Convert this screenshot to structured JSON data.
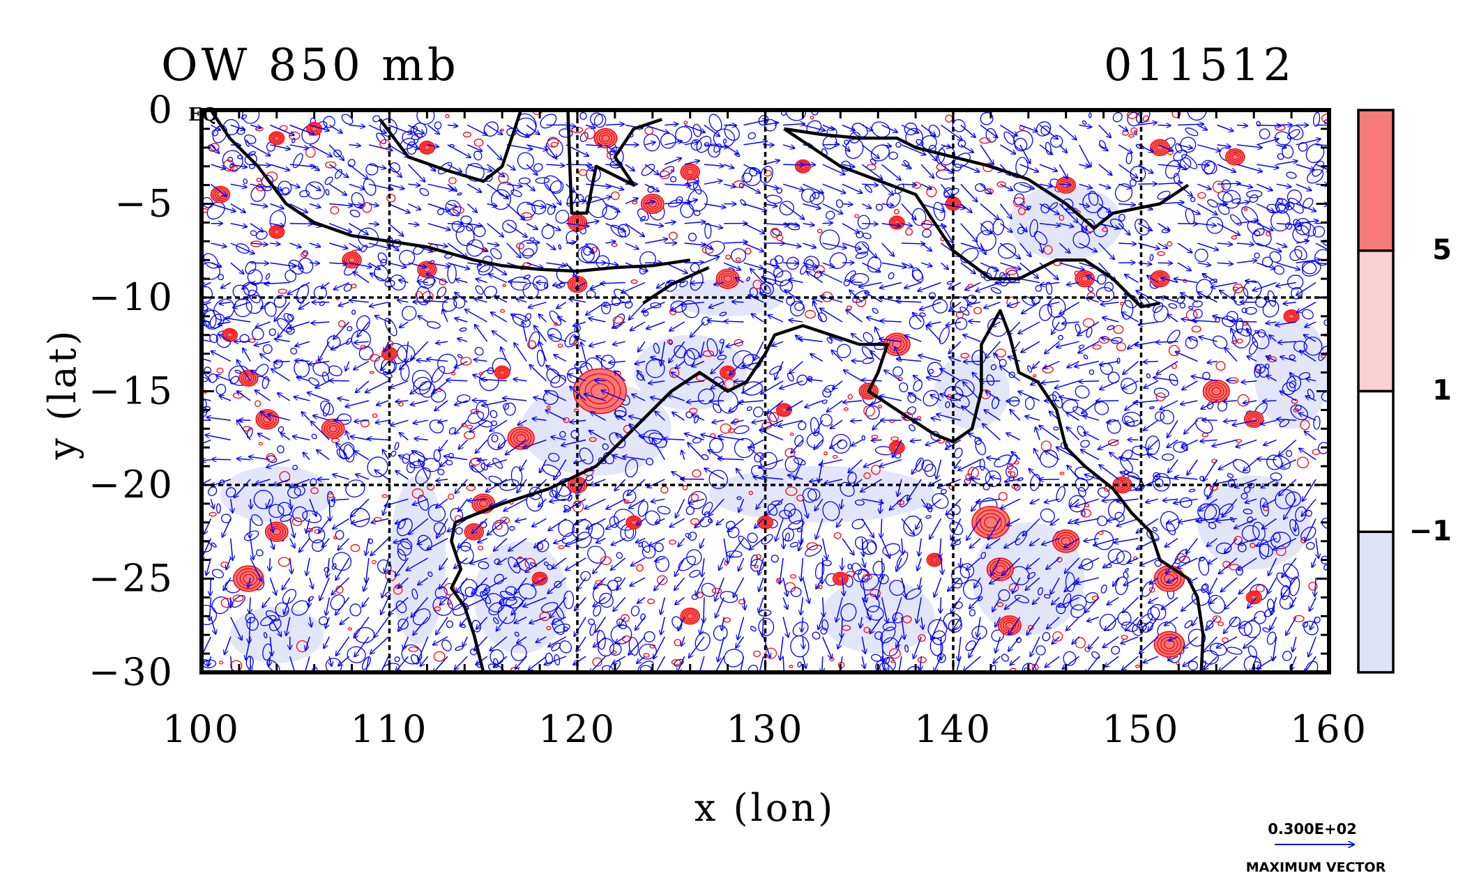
{
  "chart_data": {
    "type": "heatmap",
    "title": "OW 850 mb",
    "date_label": "011512",
    "xlabel": "x (lon)",
    "ylabel": "y (lat)",
    "xlim": [
      100,
      160
    ],
    "ylim": [
      -30,
      0
    ],
    "xticks": [
      100,
      110,
      120,
      130,
      140,
      150,
      160
    ],
    "yticks": [
      0,
      -5,
      -10,
      -15,
      -20,
      -25,
      -30
    ],
    "ytick_labels": [
      "0",
      "−5",
      "−10",
      "−15",
      "−20",
      "−25",
      "−30"
    ],
    "corner_label": "EQ",
    "grid": true,
    "grid_x": [
      110,
      120,
      130,
      140,
      150
    ],
    "grid_y": [
      -10,
      -20
    ],
    "colorbar": {
      "levels": [
        -1,
        1,
        5
      ],
      "level_labels": [
        "−1",
        "1",
        "5"
      ],
      "colors": [
        "#dde2f7",
        "#ffffff",
        "#fbd0d0",
        "#f57a78"
      ]
    },
    "vector_key": {
      "magnitude_label": "0.300E+02",
      "caption": "MAXIMUM VECTOR"
    },
    "colors": {
      "positive_contour": "#ff0000",
      "negative_contour": "#0000ff",
      "vector": "#0000ff",
      "coastline": "#000000"
    },
    "features": [
      {
        "name": "Sumatra / Java coast",
        "lonlat": [
          [
            100.5,
            0
          ],
          [
            101.5,
            -1.5
          ],
          [
            103,
            -3
          ],
          [
            104.5,
            -5
          ],
          [
            106,
            -6
          ],
          [
            108,
            -6.7
          ],
          [
            110,
            -7
          ],
          [
            112,
            -7.3
          ],
          [
            114.5,
            -8
          ],
          [
            116,
            -8.3
          ],
          [
            118,
            -8.5
          ],
          [
            120,
            -8.6
          ],
          [
            122,
            -8.4
          ],
          [
            124,
            -8.3
          ],
          [
            126,
            -8
          ]
        ]
      },
      {
        "name": "Borneo south coast",
        "lonlat": [
          [
            109.5,
            -0.5
          ],
          [
            111,
            -2.5
          ],
          [
            113,
            -3.2
          ],
          [
            115,
            -3.8
          ],
          [
            116,
            -3
          ],
          [
            116.5,
            -1.5
          ],
          [
            117,
            0
          ]
        ]
      },
      {
        "name": "Sulawesi",
        "lonlat": [
          [
            119.5,
            0
          ],
          [
            119.6,
            -3
          ],
          [
            119.7,
            -5.5
          ],
          [
            120.5,
            -5.5
          ],
          [
            121,
            -3
          ],
          [
            123,
            -4
          ],
          [
            122,
            -2.5
          ],
          [
            123,
            -1
          ],
          [
            124.5,
            -0.5
          ]
        ]
      },
      {
        "name": "New Guinea south coast",
        "lonlat": [
          [
            131,
            -1
          ],
          [
            134,
            -3
          ],
          [
            138,
            -4.5
          ],
          [
            140,
            -7.5
          ],
          [
            142,
            -9
          ],
          [
            143.5,
            -9
          ],
          [
            145.5,
            -8
          ],
          [
            147,
            -8
          ],
          [
            148.5,
            -9
          ],
          [
            150,
            -10.5
          ],
          [
            151,
            -10.3
          ]
        ]
      },
      {
        "name": "New Guinea north coast",
        "lonlat": [
          [
            131,
            -1
          ],
          [
            133,
            -1.3
          ],
          [
            135,
            -1.5
          ],
          [
            137,
            -1.5
          ],
          [
            138,
            -2
          ],
          [
            140,
            -2.5
          ],
          [
            142,
            -3
          ],
          [
            144,
            -3.7
          ],
          [
            146,
            -5
          ],
          [
            147.5,
            -6.3
          ],
          [
            148.5,
            -5.5
          ],
          [
            151,
            -5
          ],
          [
            152.5,
            -4
          ]
        ]
      },
      {
        "name": "Timor",
        "lonlat": [
          [
            123.5,
            -10.3
          ],
          [
            125,
            -9.3
          ],
          [
            127,
            -8.4
          ]
        ]
      },
      {
        "name": "Australia coastline",
        "lonlat": [
          [
            113.5,
            -22
          ],
          [
            114,
            -21.8
          ],
          [
            116,
            -21
          ],
          [
            118.5,
            -20.2
          ],
          [
            121,
            -19
          ],
          [
            122.5,
            -17.5
          ],
          [
            123.5,
            -16.5
          ],
          [
            125,
            -15
          ],
          [
            126.5,
            -14
          ],
          [
            128,
            -15
          ],
          [
            129,
            -14.5
          ],
          [
            130,
            -13
          ],
          [
            130.5,
            -12
          ],
          [
            132,
            -11.5
          ],
          [
            133.5,
            -12
          ],
          [
            135,
            -12.5
          ],
          [
            136.5,
            -12.5
          ],
          [
            136,
            -14
          ],
          [
            135.5,
            -15
          ],
          [
            137,
            -16
          ],
          [
            139,
            -17.3
          ],
          [
            140,
            -17.7
          ],
          [
            141,
            -17
          ],
          [
            141.5,
            -15
          ],
          [
            141.5,
            -12.5
          ],
          [
            142.5,
            -10.7
          ],
          [
            143,
            -12
          ],
          [
            143.5,
            -14
          ],
          [
            144.5,
            -14.5
          ],
          [
            145.5,
            -16
          ],
          [
            146,
            -18
          ],
          [
            147,
            -19
          ],
          [
            148.5,
            -20.2
          ],
          [
            149.5,
            -21.5
          ],
          [
            150.5,
            -22.5
          ],
          [
            151,
            -24
          ],
          [
            152.5,
            -25
          ],
          [
            153,
            -26
          ],
          [
            153.3,
            -28
          ],
          [
            153.2,
            -30
          ]
        ]
      },
      {
        "name": "Australia west coast",
        "lonlat": [
          [
            113.5,
            -22
          ],
          [
            113.3,
            -23
          ],
          [
            113.8,
            -24.5
          ],
          [
            113.3,
            -25.5
          ],
          [
            114,
            -26.5
          ],
          [
            114.5,
            -28
          ],
          [
            115,
            -30
          ]
        ]
      }
    ],
    "positive_cells": [
      {
        "lon": 121.2,
        "lat": -15.0,
        "r": 1.4
      },
      {
        "lon": 102.5,
        "lat": -25.0,
        "r": 0.8
      },
      {
        "lon": 103.5,
        "lat": -16.5,
        "r": 0.6
      },
      {
        "lon": 107,
        "lat": -17,
        "r": 0.6
      },
      {
        "lon": 102.5,
        "lat": -14.3,
        "r": 0.5
      },
      {
        "lon": 101.5,
        "lat": -12,
        "r": 0.4
      },
      {
        "lon": 104,
        "lat": -22.5,
        "r": 0.6
      },
      {
        "lon": 142,
        "lat": -22,
        "r": 1.0
      },
      {
        "lon": 142.5,
        "lat": -24.5,
        "r": 0.7
      },
      {
        "lon": 146,
        "lat": -23,
        "r": 0.7
      },
      {
        "lon": 151.5,
        "lat": -25,
        "r": 0.8
      },
      {
        "lon": 151.5,
        "lat": -28.5,
        "r": 0.8
      },
      {
        "lon": 154,
        "lat": -15,
        "r": 0.7
      },
      {
        "lon": 156,
        "lat": -16.5,
        "r": 0.5
      },
      {
        "lon": 137,
        "lat": -12.5,
        "r": 0.7
      },
      {
        "lon": 128,
        "lat": -9,
        "r": 0.6
      },
      {
        "lon": 120,
        "lat": -9.3,
        "r": 0.5
      },
      {
        "lon": 124,
        "lat": -5,
        "r": 0.6
      },
      {
        "lon": 120,
        "lat": -6,
        "r": 0.5
      },
      {
        "lon": 126,
        "lat": -3.3,
        "r": 0.5
      },
      {
        "lon": 121.5,
        "lat": -1.5,
        "r": 0.6
      },
      {
        "lon": 117,
        "lat": -17.5,
        "r": 0.7
      },
      {
        "lon": 115,
        "lat": -21,
        "r": 0.6
      },
      {
        "lon": 143,
        "lat": -27.5,
        "r": 0.6
      },
      {
        "lon": 147,
        "lat": -9,
        "r": 0.5
      },
      {
        "lon": 151,
        "lat": -9,
        "r": 0.5
      },
      {
        "lon": 101,
        "lat": -4.5,
        "r": 0.5
      },
      {
        "lon": 104,
        "lat": -6.5,
        "r": 0.4
      },
      {
        "lon": 108,
        "lat": -8,
        "r": 0.5
      },
      {
        "lon": 112,
        "lat": -8.5,
        "r": 0.5
      },
      {
        "lon": 114.5,
        "lat": -22.5,
        "r": 0.5
      },
      {
        "lon": 118,
        "lat": -25,
        "r": 0.4
      },
      {
        "lon": 126,
        "lat": -27,
        "r": 0.5
      },
      {
        "lon": 134,
        "lat": -25,
        "r": 0.4
      },
      {
        "lon": 139,
        "lat": -24,
        "r": 0.4
      },
      {
        "lon": 149,
        "lat": -20,
        "r": 0.5
      },
      {
        "lon": 156,
        "lat": -26,
        "r": 0.4
      },
      {
        "lon": 131,
        "lat": -16,
        "r": 0.4
      },
      {
        "lon": 135.5,
        "lat": -15,
        "r": 0.5
      },
      {
        "lon": 128,
        "lat": -14,
        "r": 0.4
      },
      {
        "lon": 146,
        "lat": -4,
        "r": 0.5
      },
      {
        "lon": 140,
        "lat": -5,
        "r": 0.4
      },
      {
        "lon": 155,
        "lat": -2.5,
        "r": 0.5
      },
      {
        "lon": 151,
        "lat": -2,
        "r": 0.5
      },
      {
        "lon": 132,
        "lat": -3,
        "r": 0.4
      },
      {
        "lon": 137,
        "lat": -6,
        "r": 0.4
      },
      {
        "lon": 158,
        "lat": -11,
        "r": 0.4
      },
      {
        "lon": 112,
        "lat": -2,
        "r": 0.4
      },
      {
        "lon": 106,
        "lat": -1,
        "r": 0.4
      },
      {
        "lon": 110,
        "lat": -13,
        "r": 0.4
      },
      {
        "lon": 120,
        "lat": -20,
        "r": 0.5
      },
      {
        "lon": 123,
        "lat": -22,
        "r": 0.4
      },
      {
        "lon": 130,
        "lat": -22,
        "r": 0.4
      },
      {
        "lon": 137,
        "lat": -18,
        "r": 0.4
      },
      {
        "lon": 104,
        "lat": -1.5,
        "r": 0.4
      },
      {
        "lon": 116,
        "lat": -14,
        "r": 0.4
      }
    ],
    "negative_regions": [
      {
        "lon": 111.5,
        "lat": -24,
        "rx": 1.5,
        "ry": 4.5
      },
      {
        "lon": 133,
        "lat": -20.5,
        "rx": 6,
        "ry": 1.5
      },
      {
        "lon": 121,
        "lat": -17,
        "rx": 4,
        "ry": 2.5
      },
      {
        "lon": 126,
        "lat": -14,
        "rx": 3,
        "ry": 2
      },
      {
        "lon": 141,
        "lat": -15,
        "rx": 2,
        "ry": 2
      },
      {
        "lon": 104,
        "lat": -28,
        "rx": 2.5,
        "ry": 1.5
      },
      {
        "lon": 156,
        "lat": -22,
        "rx": 3,
        "ry": 2.5
      },
      {
        "lon": 144,
        "lat": -25,
        "rx": 3,
        "ry": 3
      },
      {
        "lon": 117,
        "lat": -26,
        "rx": 2.5,
        "ry": 3
      },
      {
        "lon": 136,
        "lat": -27,
        "rx": 3,
        "ry": 2
      },
      {
        "lon": 104,
        "lat": -20.5,
        "rx": 3,
        "ry": 1.5
      },
      {
        "lon": 146,
        "lat": -6,
        "rx": 3,
        "ry": 2
      },
      {
        "lon": 158,
        "lat": -14,
        "rx": 2,
        "ry": 3
      },
      {
        "lon": 128,
        "lat": -10,
        "rx": 3,
        "ry": 1
      }
    ]
  }
}
